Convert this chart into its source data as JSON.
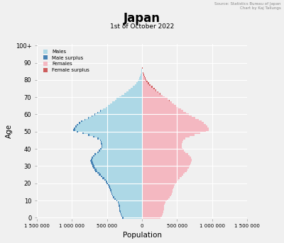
{
  "title": "Japan",
  "subtitle": "1st of October 2022",
  "source_text": "Source: Statistics Bureau of Japan\nChart by Kaj Tallungs",
  "xlabel": "Population",
  "ylabel": "Age",
  "xlim": [
    -1500000,
    1500000
  ],
  "xticks": [
    -1500000,
    -1000000,
    -500000,
    0,
    500000,
    1000000,
    1500000
  ],
  "xtick_labels": [
    "1 500 000",
    "1 000 000",
    "500 000",
    "0",
    "500 000",
    "1 000 000",
    "1 500 000"
  ],
  "yticks": [
    0,
    10,
    20,
    30,
    40,
    50,
    60,
    70,
    80,
    90,
    100
  ],
  "ytick_labels": [
    "0",
    "10",
    "20",
    "30",
    "40",
    "50",
    "60",
    "70",
    "80",
    "90",
    "100+"
  ],
  "color_male": "#add8e6",
  "color_male_surplus": "#4682b4",
  "color_female": "#f4b8c1",
  "color_female_surplus": "#cd5c5c",
  "background_color": "#f0f0f0",
  "grid_color": "#ffffff",
  "males": [
    282000,
    298000,
    307000,
    314000,
    320000,
    325000,
    328000,
    330000,
    337000,
    349000,
    367000,
    393000,
    415000,
    430000,
    440000,
    450000,
    460000,
    470000,
    480000,
    490000,
    505000,
    520000,
    540000,
    565000,
    590000,
    615000,
    640000,
    665000,
    680000,
    700000,
    710000,
    720000,
    730000,
    735000,
    730000,
    720000,
    700000,
    675000,
    640000,
    620000,
    600000,
    580000,
    580000,
    585000,
    590000,
    600000,
    640000,
    700000,
    770000,
    850000,
    930000,
    980000,
    970000,
    950000,
    930000,
    900000,
    870000,
    820000,
    770000,
    720000,
    680000,
    640000,
    600000,
    560000,
    520000,
    490000,
    460000,
    430000,
    390000,
    360000,
    320000,
    290000,
    255000,
    220000,
    190000,
    160000,
    130000,
    105000,
    85000,
    65000,
    50000,
    37000,
    27000,
    19000,
    13000,
    8500,
    5500,
    3300,
    1900,
    1000,
    550,
    280,
    140,
    65,
    30,
    13,
    5,
    2,
    1,
    0,
    0
  ],
  "females": [
    268000,
    283000,
    292000,
    299000,
    305000,
    310000,
    313000,
    316000,
    322000,
    334000,
    352000,
    376000,
    397000,
    411000,
    421000,
    431000,
    440000,
    450000,
    460000,
    470000,
    483000,
    497000,
    516000,
    540000,
    564000,
    589000,
    613000,
    637000,
    652000,
    672000,
    682000,
    692000,
    703000,
    710000,
    706000,
    697000,
    677000,
    654000,
    620000,
    601000,
    582000,
    563000,
    563000,
    568000,
    573000,
    583000,
    622000,
    682000,
    750000,
    828000,
    908000,
    957000,
    949000,
    930000,
    912000,
    882000,
    854000,
    806000,
    758000,
    710000,
    670000,
    631000,
    592000,
    553000,
    515000,
    486000,
    457000,
    430000,
    393000,
    364000,
    325000,
    298000,
    267000,
    234000,
    207000,
    178000,
    150000,
    124000,
    102000,
    80000,
    63000,
    48000,
    36000,
    26000,
    18000,
    12500,
    8500,
    5300,
    3100,
    1700,
    900,
    470,
    230,
    105,
    47,
    20,
    7,
    2,
    1,
    0,
    0
  ]
}
